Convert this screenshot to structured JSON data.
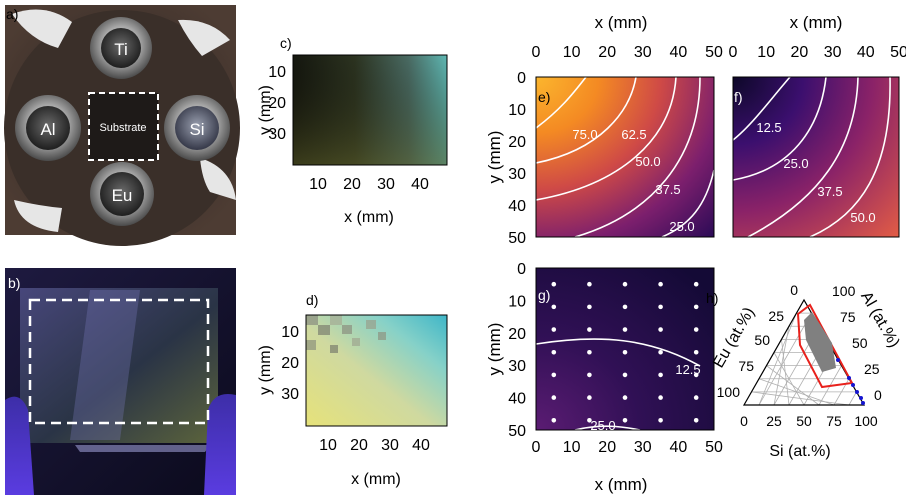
{
  "panels": {
    "a": {
      "label": "a)",
      "targets": [
        "Ti",
        "Al",
        "Si",
        "Eu"
      ],
      "substrate_label": "Substrate"
    },
    "b": {
      "label": "b)"
    },
    "c": {
      "label": "c)",
      "xlabel": "x (mm)",
      "ylabel": "y (mm)",
      "xticks": [
        "10",
        "20",
        "30",
        "40"
      ],
      "yticks": [
        "10",
        "20",
        "30"
      ]
    },
    "d": {
      "label": "d)",
      "xlabel": "x (mm)",
      "ylabel": "y (mm)",
      "xticks": [
        "10",
        "20",
        "30",
        "40"
      ],
      "yticks": [
        "10",
        "20",
        "30"
      ]
    },
    "e": {
      "label": "e)"
    },
    "f": {
      "label": "f)"
    },
    "g": {
      "label": "g)"
    },
    "h": {
      "label": "h)"
    }
  },
  "colors": {
    "contour_line": "#ffffff",
    "ternary_region": "#e8211c",
    "ternary_fill": "#808080",
    "ternary_points": "#1515d0"
  },
  "chart_data": [
    {
      "type": "heatmap",
      "panel": "e",
      "xlabel_top": "x (mm)",
      "ylabel": "y (mm)",
      "xlim": [
        0,
        50
      ],
      "ylim": [
        50,
        0
      ],
      "xticks": [
        "0",
        "10",
        "20",
        "30",
        "40",
        "50"
      ],
      "yticks": [
        "0",
        "10",
        "20",
        "30",
        "40",
        "50"
      ],
      "colormap": "inferno",
      "contour_labels": [
        "75.0",
        "62.5",
        "50.0",
        "37.5",
        "25.0"
      ]
    },
    {
      "type": "heatmap",
      "panel": "f",
      "xlabel_top": "x (mm)",
      "xlim": [
        0,
        50
      ],
      "ylim": [
        50,
        0
      ],
      "xticks": [
        "0",
        "10",
        "20",
        "30",
        "40",
        "50"
      ],
      "colormap": "inferno",
      "contour_labels": [
        "12.5",
        "25.0",
        "37.5",
        "50.0"
      ]
    },
    {
      "type": "heatmap",
      "panel": "g",
      "xlabel": "x (mm)",
      "ylabel": "y (mm)",
      "xlim": [
        0,
        50
      ],
      "ylim": [
        50,
        0
      ],
      "xticks": [
        "0",
        "10",
        "20",
        "30",
        "40",
        "50"
      ],
      "yticks": [
        "0",
        "10",
        "20",
        "30",
        "40",
        "50"
      ],
      "colormap": "inferno",
      "contour_labels": [
        "12.5",
        "25.0"
      ],
      "sample_points": {
        "x": [
          5,
          15,
          25,
          35,
          45
        ],
        "y": [
          5,
          12,
          19,
          26,
          33,
          40,
          47
        ]
      }
    },
    {
      "type": "scatter",
      "panel": "h",
      "subtype": "ternary",
      "axes": [
        "Si (at.%)",
        "Eu (at.%)",
        "Al (at.%)"
      ],
      "ticks": [
        "0",
        "25",
        "50",
        "75",
        "100"
      ]
    }
  ]
}
